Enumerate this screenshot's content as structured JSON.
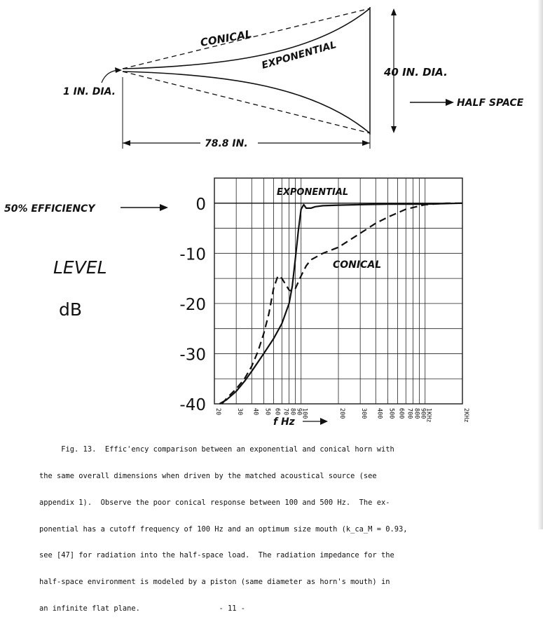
{
  "horn_diagram": {
    "label_conical": "CONICAL",
    "label_exponential": "EXPONENTIAL",
    "throat_label": "1 IN. DIA.",
    "mouth_label": "40 IN. DIA.",
    "length_label": "78.8 IN.",
    "half_space_label": "HALF SPACE"
  },
  "chart_data": {
    "type": "line",
    "xlabel": "f Hz",
    "x_scale": "log",
    "xlim": [
      20,
      2000
    ],
    "x_ticks": [
      "20",
      "30",
      "40",
      "50",
      "60",
      "70",
      "80",
      "90",
      "100",
      "200",
      "300",
      "400",
      "500",
      "600",
      "700",
      "800",
      "900",
      "1KHz",
      "2KHz"
    ],
    "x_tick_values": [
      20,
      30,
      40,
      50,
      60,
      70,
      80,
      90,
      100,
      200,
      300,
      400,
      500,
      600,
      700,
      800,
      900,
      1000,
      2000
    ],
    "ylabel_line1": "LEVEL",
    "ylabel_line2": "dB",
    "ylim": [
      -40,
      5
    ],
    "y_ticks": [
      "0",
      "-10",
      "-20",
      "-30",
      "-40"
    ],
    "y_tick_values": [
      0,
      -10,
      -20,
      -30,
      -40
    ],
    "efficiency_marker": "50% EFFICIENCY",
    "grid": true,
    "series": [
      {
        "name": "EXPONENTIAL",
        "style": "solid",
        "x": [
          22,
          25,
          30,
          35,
          40,
          50,
          60,
          70,
          80,
          85,
          90,
          95,
          100,
          105,
          110,
          120,
          130,
          150,
          200,
          300,
          500,
          1000,
          2000
        ],
        "y": [
          -40,
          -39.2,
          -37.5,
          -35.5,
          -33.5,
          -30,
          -27,
          -24,
          -20,
          -16.5,
          -11,
          -5.5,
          -1.2,
          -0.3,
          -1,
          -1,
          -0.7,
          -0.5,
          -0.4,
          -0.3,
          -0.2,
          -0.2,
          0
        ]
      },
      {
        "name": "CONICAL",
        "style": "dashed",
        "x": [
          23,
          26,
          30,
          35,
          40,
          45,
          50,
          55,
          60,
          65,
          70,
          75,
          80,
          85,
          90,
          100,
          110,
          120,
          150,
          200,
          300,
          400,
          500,
          700,
          1000,
          1500,
          2000
        ],
        "y": [
          -40,
          -38.5,
          -37,
          -35,
          -32.5,
          -29.5,
          -26,
          -22,
          -17,
          -14.5,
          -15,
          -16.2,
          -17.3,
          -17.6,
          -17,
          -14.5,
          -12.5,
          -11.3,
          -10,
          -8.8,
          -6,
          -4,
          -2.8,
          -1.2,
          -0.3,
          0,
          0
        ]
      }
    ]
  },
  "caption": {
    "lines": [
      "     Fig. 13.  Effic'ency comparison between an exponential and conical horn with",
      "the same overall dimensions when driven by the matched acoustical source (see",
      "appendix 1).  Observe the poor conical response between 100 and 500 Hz.  The ex-",
      "ponential has a cutoff frequency of 100 Hz and an optimum size mouth (k_ca_M = 0.93,",
      "see [47] for radiation into the half-space load.  The radiation impedance for the",
      "half-space environment is modeled by a piston (same diameter as horn's mouth) in",
      "an infinite flat plane.                  - 11 -"
    ]
  }
}
